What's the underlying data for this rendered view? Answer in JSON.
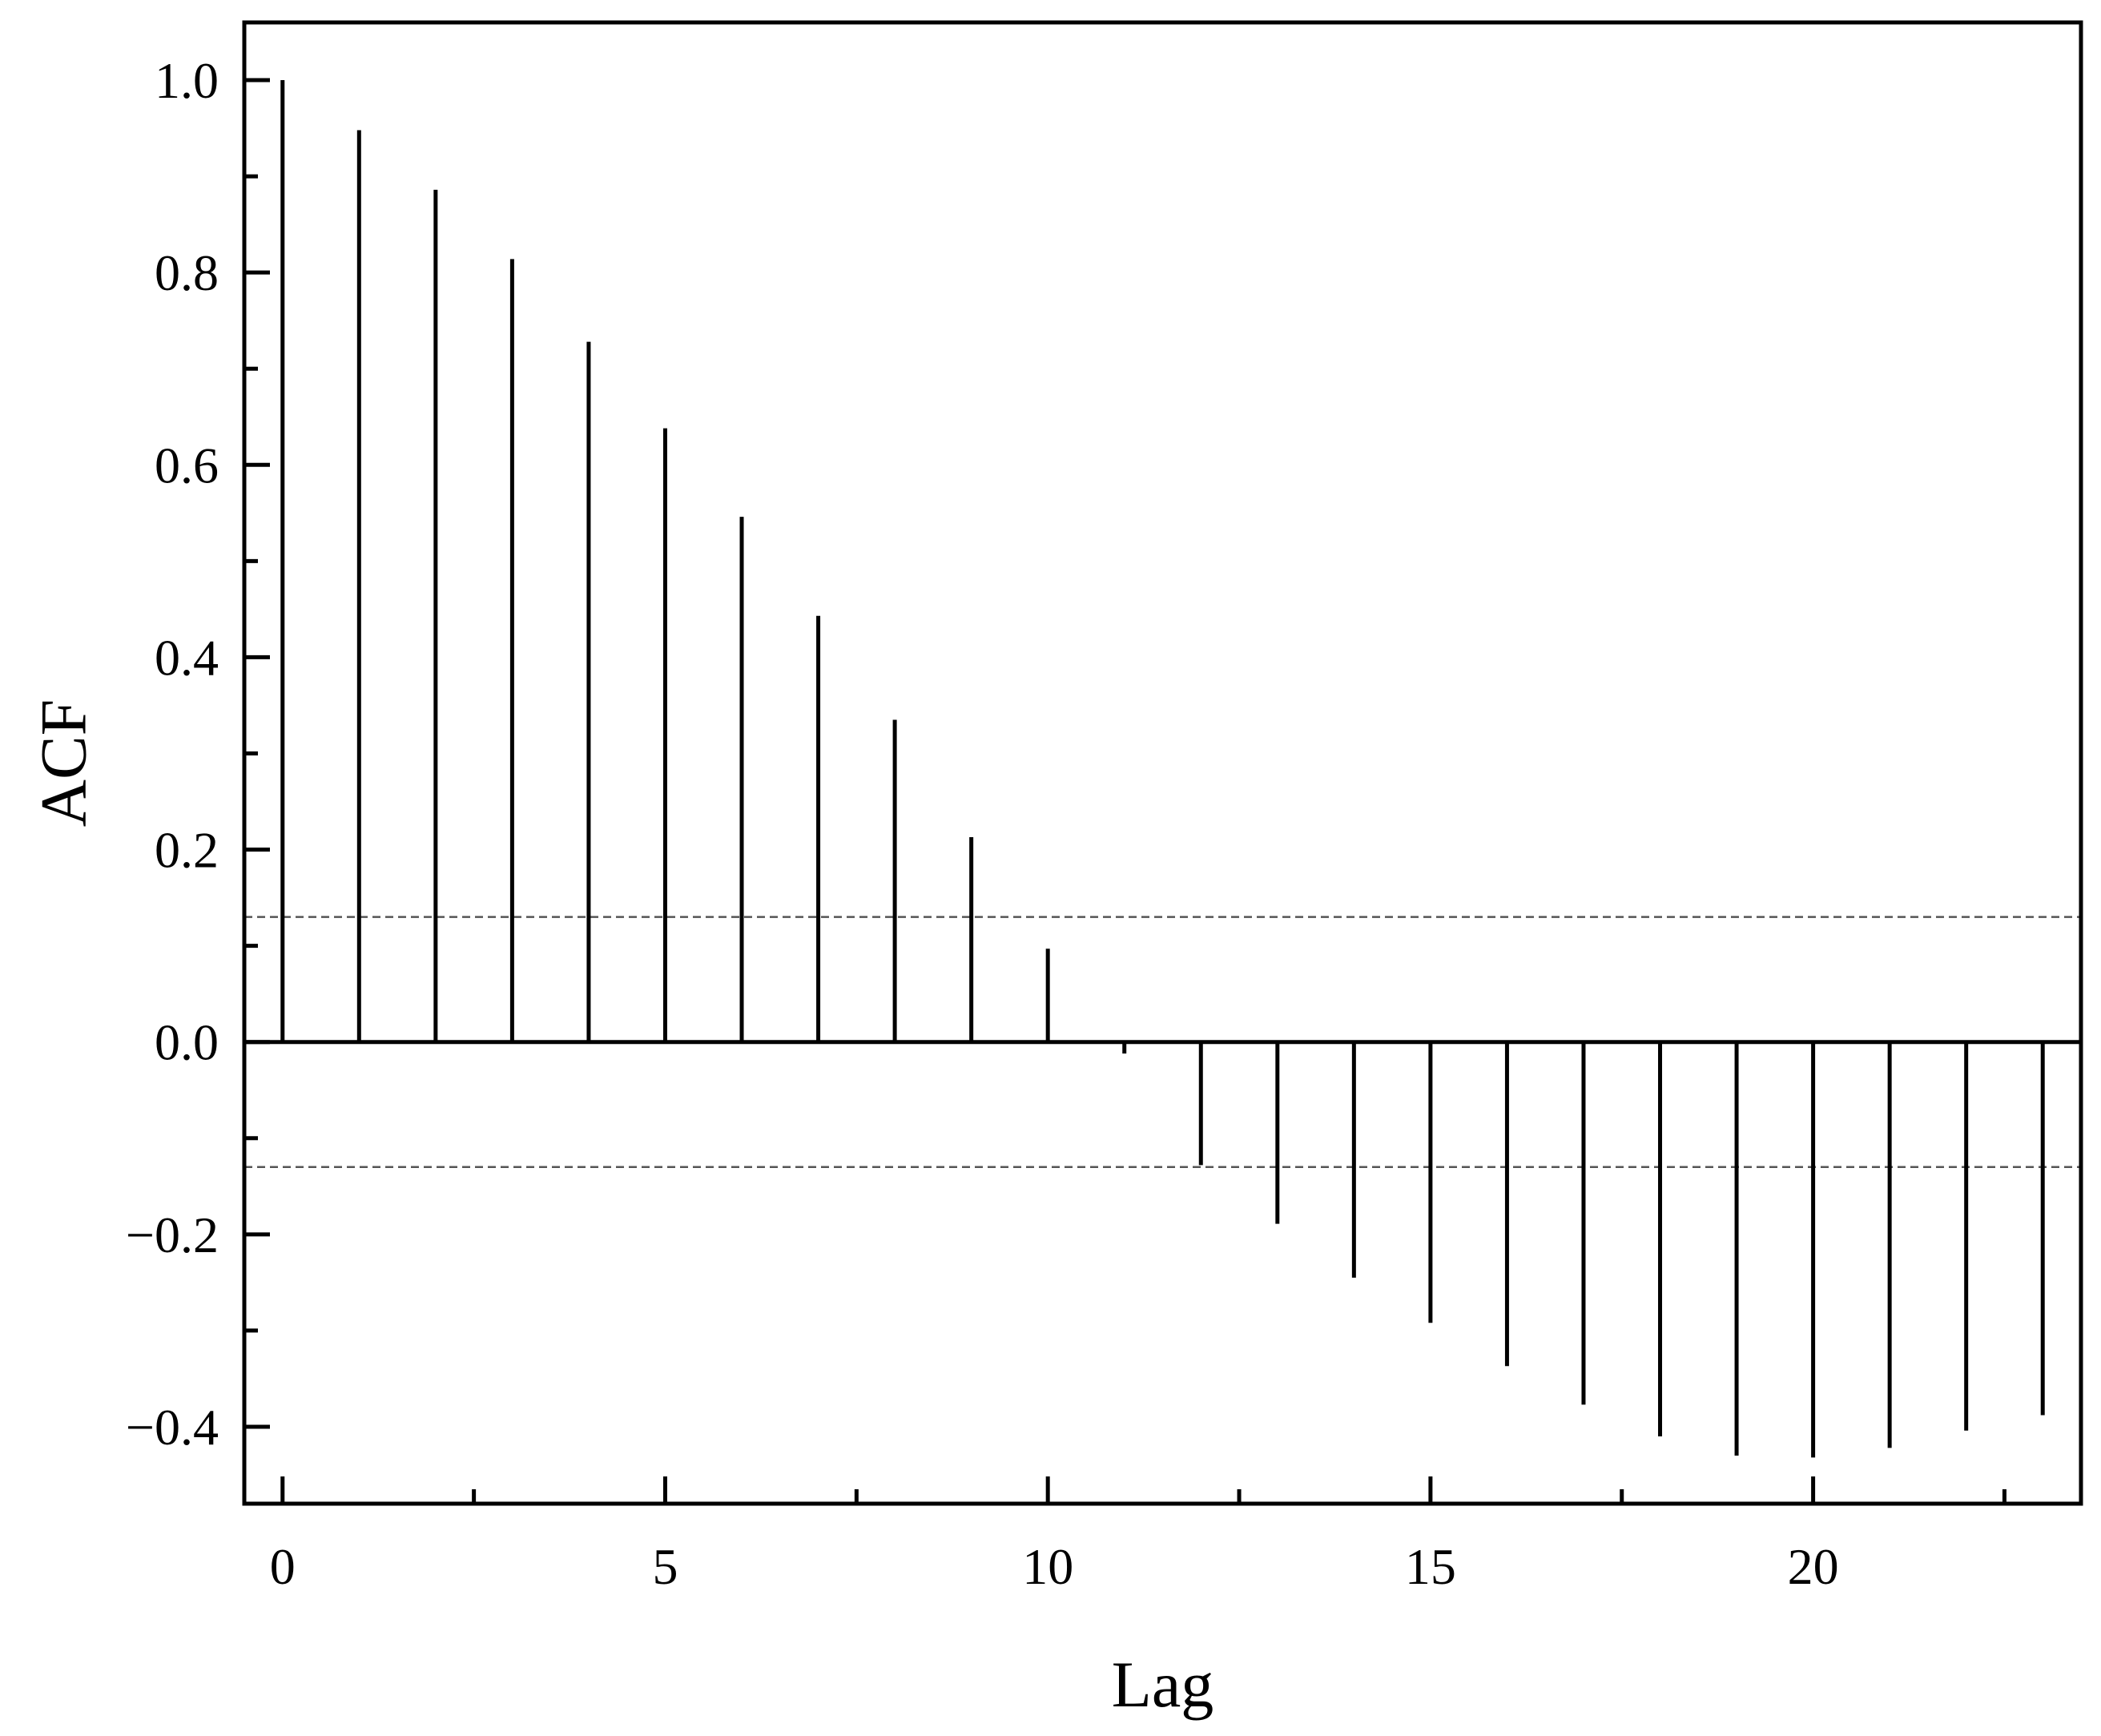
{
  "chart_data": {
    "type": "bar",
    "title": "",
    "xlabel": "Lag",
    "ylabel": "ACF",
    "xlim": [
      -0.5,
      23.5
    ],
    "ylim": [
      -0.48,
      1.06
    ],
    "x_major_ticks": [
      0,
      5,
      10,
      15,
      20
    ],
    "x_major_tick_labels": [
      "0",
      "5",
      "10",
      "15",
      "20"
    ],
    "x_minor_ticks": [
      2.5,
      7.5,
      12.5,
      17.5,
      22.5
    ],
    "y_major_ticks": [
      -0.4,
      -0.2,
      0.0,
      0.2,
      0.4,
      0.6,
      0.8,
      1.0
    ],
    "y_major_tick_labels": [
      "−0.4",
      "−0.2",
      "0.0",
      "0.2",
      "0.4",
      "0.6",
      "0.8",
      "1.0"
    ],
    "y_minor_ticks": [
      -0.3,
      -0.1,
      0.1,
      0.3,
      0.5,
      0.7,
      0.9
    ],
    "grid": false,
    "legend": "none",
    "confidence_bounds": [
      0.13,
      -0.13
    ],
    "series": [
      {
        "x": [
          0,
          1,
          2,
          3,
          4,
          5,
          6,
          7,
          8,
          9,
          10,
          11,
          12,
          13,
          14,
          15,
          16,
          17,
          18,
          19,
          20,
          21,
          22,
          23
        ],
        "values": [
          1.0,
          0.948,
          0.886,
          0.814,
          0.728,
          0.638,
          0.546,
          0.443,
          0.335,
          0.213,
          0.097,
          -0.012,
          -0.128,
          -0.189,
          -0.245,
          -0.292,
          -0.337,
          -0.377,
          -0.41,
          -0.43,
          -0.432,
          -0.422,
          -0.404,
          -0.388
        ],
        "color": "#000000"
      }
    ]
  }
}
